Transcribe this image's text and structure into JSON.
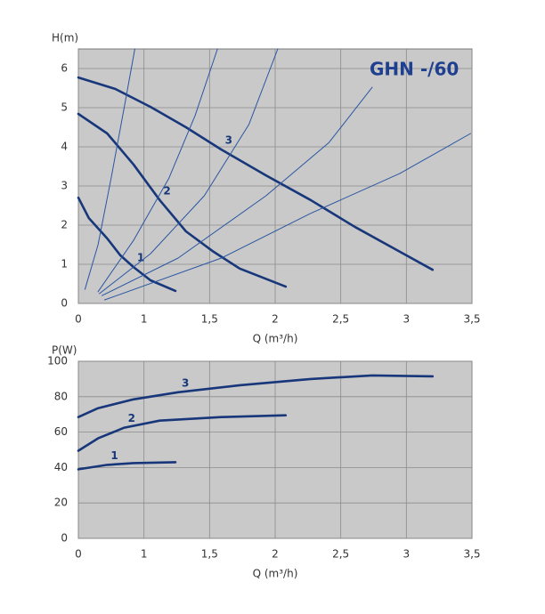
{
  "chart_data": [
    {
      "type": "line",
      "title": "GHN -/60",
      "ylabel": "H(m)",
      "xlabel": "Q (m³/h)",
      "xlim": [
        0.5,
        3.5
      ],
      "ylim": [
        0,
        6.5
      ],
      "xticks": [
        {
          "value": 0.5,
          "label": "0"
        },
        1,
        {
          "value": 1.5,
          "label": "1,5"
        },
        2,
        {
          "value": 2.5,
          "label": "2,5"
        },
        3,
        {
          "value": 3.5,
          "label": "3,5"
        }
      ],
      "yticks": [
        0,
        1,
        2,
        3,
        4,
        5,
        6
      ],
      "grid": true,
      "series": [
        {
          "name": "1",
          "color": "#17377a",
          "line_width": 2.6,
          "x": [
            0.5,
            0.58,
            0.72,
            0.82,
            0.92,
            1.05,
            1.24
          ],
          "values": [
            2.7,
            2.18,
            1.66,
            1.23,
            0.93,
            0.59,
            0.32
          ]
        },
        {
          "name": "2",
          "color": "#17377a",
          "line_width": 2.6,
          "x": [
            0.5,
            0.72,
            0.92,
            1.12,
            1.32,
            1.53,
            1.73,
            2.08
          ],
          "values": [
            4.84,
            4.34,
            3.55,
            2.64,
            1.84,
            1.32,
            0.89,
            0.43
          ]
        },
        {
          "name": "3",
          "color": "#17377a",
          "line_width": 2.6,
          "x": [
            0.5,
            0.78,
            1.05,
            1.32,
            1.59,
            1.93,
            2.27,
            2.61,
            2.95,
            3.2
          ],
          "values": [
            5.77,
            5.48,
            5.02,
            4.5,
            3.93,
            3.27,
            2.64,
            1.95,
            1.32,
            0.86
          ]
        },
        {
          "color": "#2a55a2",
          "line_width": 1,
          "x": [
            0.55,
            0.65,
            0.75,
            0.85,
            0.93
          ],
          "values": [
            0.36,
            1.5,
            3.2,
            5.02,
            6.5
          ]
        },
        {
          "color": "#2a55a2",
          "line_width": 1,
          "x": [
            0.65,
            0.92,
            1.19,
            1.39,
            1.56
          ],
          "values": [
            0.3,
            1.61,
            3.2,
            4.8,
            6.5
          ]
        },
        {
          "color": "#2a55a2",
          "line_width": 1,
          "x": [
            0.66,
            1.05,
            1.46,
            1.8,
            2.02
          ],
          "values": [
            0.25,
            1.27,
            2.75,
            4.57,
            6.5
          ]
        },
        {
          "color": "#2a55a2",
          "line_width": 1,
          "x": [
            0.68,
            1.26,
            1.93,
            2.41,
            2.74
          ],
          "values": [
            0.2,
            1.16,
            2.75,
            4.11,
            5.52
          ]
        },
        {
          "color": "#2a55a2",
          "line_width": 1,
          "x": [
            0.7,
            1.59,
            2.27,
            2.95,
            3.49
          ],
          "values": [
            0.09,
            1.16,
            2.3,
            3.32,
            4.34
          ]
        }
      ]
    },
    {
      "type": "line",
      "ylabel": "P(W)",
      "xlabel": "Q (m³/h)",
      "xlim": [
        0.5,
        3.5
      ],
      "ylim": [
        0,
        100
      ],
      "xticks": [
        {
          "value": 0.5,
          "label": "0"
        },
        1,
        {
          "value": 1.5,
          "label": "1,5"
        },
        2,
        {
          "value": 2.5,
          "label": "2,5"
        },
        3,
        {
          "value": 3.5,
          "label": "3,5"
        }
      ],
      "yticks": [
        0,
        20,
        40,
        60,
        80,
        100
      ],
      "grid": true,
      "series": [
        {
          "name": "1",
          "color": "#17377a",
          "line_width": 2.6,
          "x": [
            0.5,
            0.72,
            0.92,
            1.24
          ],
          "values": [
            39,
            41.5,
            42.5,
            43
          ]
        },
        {
          "name": "2",
          "color": "#17377a",
          "line_width": 2.6,
          "x": [
            0.5,
            0.65,
            0.85,
            1.12,
            1.59,
            2.08
          ],
          "values": [
            49.5,
            56.5,
            62.5,
            66.5,
            68.5,
            69.5
          ]
        },
        {
          "name": "3",
          "color": "#17377a",
          "line_width": 2.6,
          "x": [
            0.5,
            0.65,
            0.92,
            1.26,
            1.73,
            2.27,
            2.74,
            3.2
          ],
          "values": [
            68.5,
            73.5,
            78.5,
            82.5,
            86.5,
            90,
            92,
            91.5
          ]
        }
      ]
    }
  ]
}
